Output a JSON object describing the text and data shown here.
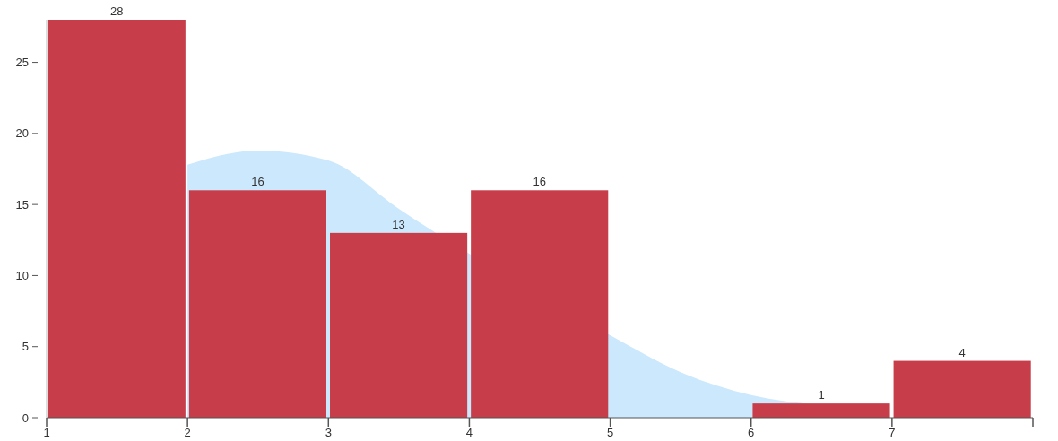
{
  "chart_data": {
    "type": "histogram",
    "xlim": [
      1,
      8
    ],
    "xticks": [
      1,
      2,
      3,
      4,
      5,
      6,
      7,
      {
        "value": 8,
        "label": null
      }
    ],
    "ylim": [
      0,
      28
    ],
    "yticks": [
      0,
      5,
      10,
      15,
      20,
      25
    ],
    "grid": false,
    "legend": false,
    "series": [
      {
        "type": "area",
        "color": "#cce8fd",
        "x": [
          2,
          2.5,
          3,
          3.5,
          5,
          5.5,
          6,
          6.5
        ],
        "values": [
          17.8,
          18.8,
          18.1,
          14.7,
          5.8,
          3.2,
          1.6,
          0.9
        ]
      },
      {
        "color": "#c73e4a",
        "bins": [
          1,
          2,
          3,
          4,
          5,
          6,
          7,
          8
        ],
        "values": [
          28,
          16,
          13,
          16,
          0,
          1,
          4
        ],
        "value_labels": [
          "28",
          "16",
          "13",
          "16",
          null,
          "1",
          "4"
        ]
      }
    ]
  }
}
